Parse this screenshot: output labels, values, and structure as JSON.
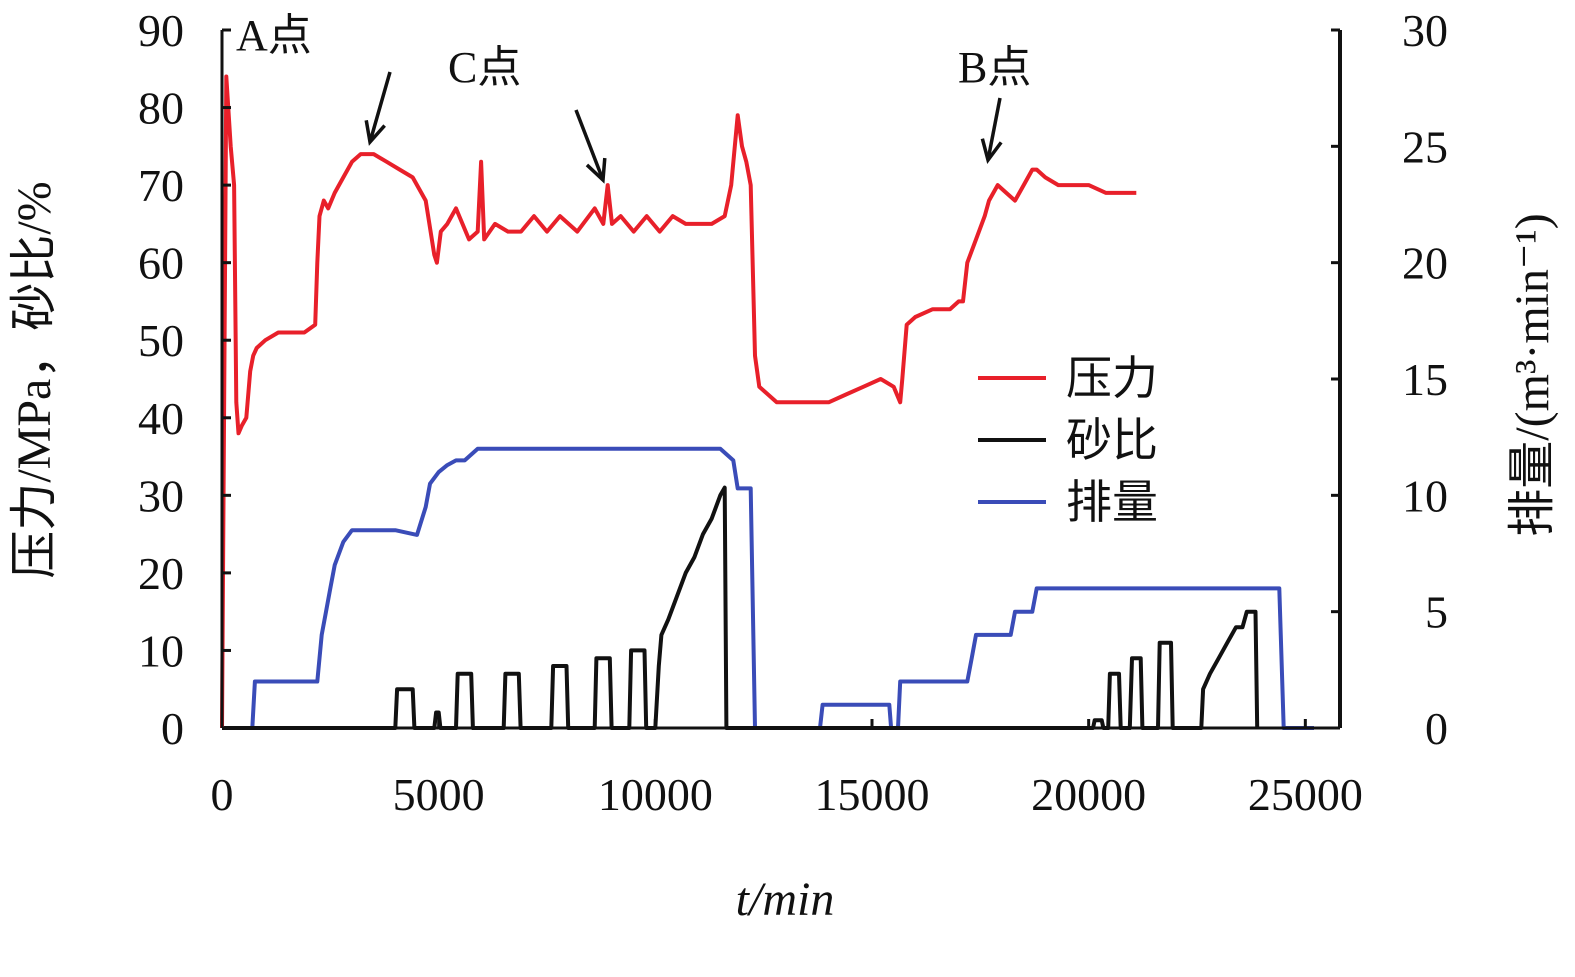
{
  "chart_data": {
    "type": "line",
    "xlabel": "t/min",
    "ylabel": "压力/MPa，砂比/%",
    "y2label": "排量/(m³·min⁻¹)",
    "xlim": [
      0,
      25800
    ],
    "ylim": [
      0,
      90
    ],
    "y2lim": [
      0,
      30
    ],
    "x_ticks": [
      0,
      5000,
      10000,
      15000,
      20000,
      25000
    ],
    "y_ticks": [
      0,
      10,
      20,
      30,
      40,
      50,
      60,
      70,
      80,
      90
    ],
    "y2_ticks": [
      0,
      5,
      10,
      15,
      20,
      25,
      30
    ],
    "grid": false,
    "legend_position": "center-right",
    "series": [
      {
        "name": "压力",
        "color": "#e8202a",
        "axis": "left",
        "x": [
          0,
          100,
          200,
          280,
          330,
          380,
          460,
          560,
          650,
          720,
          800,
          1000,
          1300,
          1600,
          1900,
          2150,
          2200,
          2250,
          2350,
          2450,
          2600,
          2800,
          3000,
          3200,
          3500,
          3800,
          4100,
          4400,
          4700,
          4900,
          4960,
          5050,
          5200,
          5400,
          5550,
          5700,
          5900,
          5980,
          6050,
          6300,
          6600,
          6900,
          7200,
          7500,
          7800,
          8200,
          8600,
          8800,
          8900,
          9000,
          9200,
          9500,
          9800,
          10100,
          10400,
          10700,
          11000,
          11300,
          11600,
          11750,
          11900,
          12000,
          12100,
          12200,
          12300,
          12400,
          12600,
          12800,
          13200,
          13600,
          14000,
          14400,
          14800,
          15200,
          15500,
          15650,
          15700,
          15800,
          16000,
          16400,
          16800,
          17000,
          17100,
          17200,
          17400,
          17600,
          17700,
          17900,
          18100,
          18300,
          18500,
          18700,
          18800,
          19000,
          19300,
          19600,
          20000,
          20400,
          20800,
          21100
        ],
        "y": [
          0,
          84,
          75,
          70,
          42,
          38,
          39,
          40,
          46,
          48,
          49,
          50,
          51,
          51,
          51,
          52,
          60,
          66,
          68,
          67,
          69,
          71,
          73,
          74,
          74,
          73,
          72,
          71,
          68,
          61,
          60,
          64,
          65,
          67,
          65,
          63,
          64,
          73,
          63,
          65,
          64,
          64,
          66,
          64,
          66,
          64,
          67,
          65,
          70,
          65,
          66,
          64,
          66,
          64,
          66,
          65,
          65,
          65,
          66,
          70,
          79,
          75,
          73,
          70,
          48,
          44,
          43,
          42,
          42,
          42,
          42,
          43,
          44,
          45,
          44,
          42,
          45,
          52,
          53,
          54,
          54,
          55,
          55,
          60,
          63,
          66,
          68,
          70,
          69,
          68,
          70,
          72,
          72,
          71,
          70,
          70,
          70,
          69,
          69,
          69
        ]
      },
      {
        "name": "砂比",
        "color": "#111111",
        "axis": "left",
        "x": [
          0,
          4000,
          4040,
          4400,
          4440,
          4900,
          4940,
          5000,
          5040,
          5400,
          5440,
          5750,
          5790,
          6500,
          6540,
          6850,
          6890,
          7600,
          7640,
          7950,
          7990,
          8600,
          8640,
          8950,
          8990,
          9400,
          9440,
          9750,
          9790,
          10000,
          10080,
          10140,
          10300,
          10500,
          10700,
          10900,
          11100,
          11300,
          11500,
          11600,
          11640,
          20100,
          20140,
          20300,
          20340,
          20450,
          20490,
          20700,
          20740,
          20950,
          21000,
          21200,
          21240,
          21600,
          21640,
          21900,
          21940,
          22600,
          22640,
          22800,
          23000,
          23200,
          23400,
          23550,
          23650,
          23850,
          23890
        ],
        "y": [
          0,
          0,
          5,
          5,
          0,
          0,
          2,
          2,
          0,
          0,
          7,
          7,
          0,
          0,
          7,
          7,
          0,
          0,
          8,
          8,
          0,
          0,
          9,
          9,
          0,
          0,
          10,
          10,
          0,
          0,
          8,
          12,
          14,
          17,
          20,
          22,
          25,
          27,
          30,
          31,
          0,
          0,
          1,
          1,
          0,
          0,
          7,
          7,
          0,
          0,
          9,
          9,
          0,
          0,
          11,
          11,
          0,
          0,
          5,
          7,
          9,
          11,
          13,
          13,
          15,
          15,
          0
        ]
      },
      {
        "name": "排量",
        "color": "#3a4cb8",
        "axis": "right",
        "x": [
          0,
          700,
          760,
          1000,
          2200,
          2300,
          2400,
          2500,
          2600,
          2800,
          3000,
          4000,
          4500,
          4700,
          4800,
          5000,
          5200,
          5400,
          5600,
          5900,
          6100,
          6600,
          8000,
          10000,
          11500,
          11800,
          11900,
          12000,
          12200,
          12300,
          13800,
          13860,
          14500,
          15400,
          15440,
          15600,
          15650,
          17200,
          17300,
          17400,
          18000,
          18200,
          18300,
          18700,
          18800,
          19000,
          22000,
          24400,
          24500,
          25000,
          25200
        ],
        "y": [
          0,
          0,
          2,
          2,
          2,
          4,
          5,
          6,
          7,
          8,
          8.5,
          8.5,
          8.3,
          9.5,
          10.5,
          11,
          11.3,
          11.5,
          11.5,
          12,
          12,
          12,
          12,
          12,
          12,
          11.5,
          10.3,
          10.3,
          10.3,
          0,
          0,
          1,
          1,
          1,
          0,
          0,
          2,
          2,
          3,
          4,
          4,
          4,
          5,
          5,
          6,
          6,
          6,
          6,
          0,
          0,
          0
        ]
      }
    ],
    "annotations": [
      {
        "text": "A点"
      },
      {
        "text": "C点"
      },
      {
        "text": "B点"
      }
    ]
  }
}
